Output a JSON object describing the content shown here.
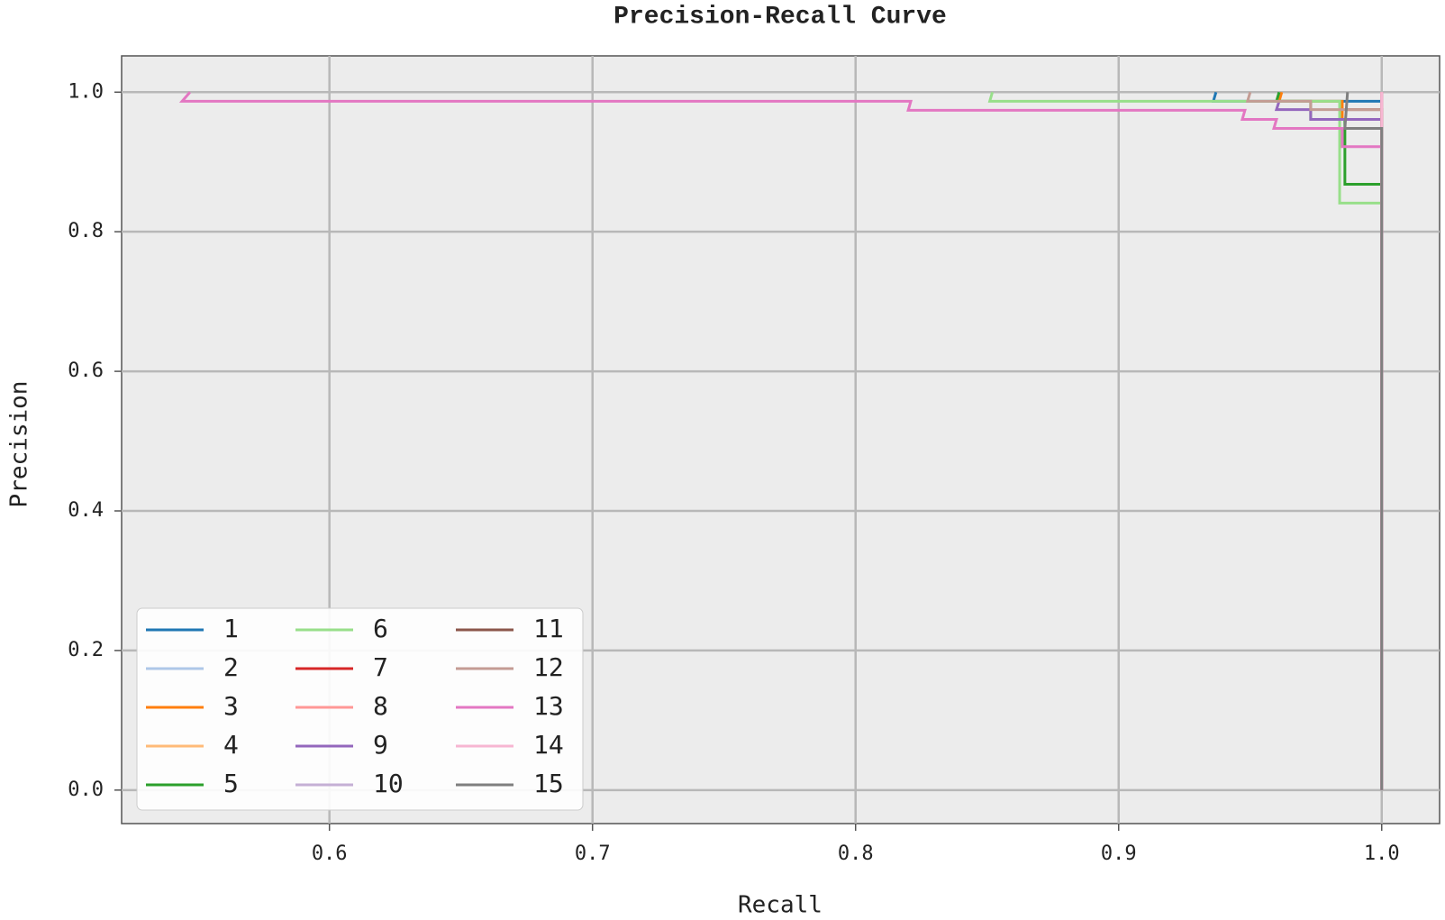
{
  "chart_data": {
    "type": "line",
    "title": "Precision-Recall Curve",
    "x_label": "Recall",
    "y_label": "Precision",
    "xlim": [
      0.521,
      1.022
    ],
    "ylim": [
      -0.048,
      1.052
    ],
    "xticks": [
      0.6,
      0.7,
      0.8,
      0.9,
      {
        "value": 1,
        "label": "1.0"
      }
    ],
    "yticks": [
      {
        "value": 0,
        "label": "0.0"
      },
      0.2,
      0.4,
      0.6,
      0.8,
      {
        "value": 1,
        "label": "1.0"
      }
    ],
    "grid": true,
    "legend": "lower left",
    "series": [
      {
        "name": "1",
        "color": "#1f77b4",
        "x": [
          0.937,
          0.936,
          1.0,
          1.0
        ],
        "values": [
          1.0,
          0.987,
          0.987,
          0.0
        ]
      },
      {
        "name": "2",
        "color": "#aec7e8",
        "x": [
          1.0,
          1.0
        ],
        "values": [
          1.0,
          0.0
        ]
      },
      {
        "name": "3",
        "color": "#ff7f0e",
        "x": [
          0.962,
          0.961,
          0.985,
          0.985,
          1.0,
          1.0
        ],
        "values": [
          1.0,
          0.987,
          0.987,
          0.961,
          0.961,
          0.0
        ]
      },
      {
        "name": "4",
        "color": "#ffbb78",
        "x": [
          1.0,
          1.0
        ],
        "values": [
          1.0,
          0.0
        ]
      },
      {
        "name": "5",
        "color": "#2ca02c",
        "x": [
          0.961,
          0.96,
          0.973,
          0.973,
          0.986,
          0.986,
          1.0,
          1.0
        ],
        "values": [
          1.0,
          0.987,
          0.987,
          0.961,
          0.961,
          0.868,
          0.868,
          0.0
        ]
      },
      {
        "name": "6",
        "color": "#98df8a",
        "x": [
          0.852,
          0.851,
          0.984,
          0.984,
          1.0,
          1.0
        ],
        "values": [
          1.0,
          0.987,
          0.987,
          0.841,
          0.841,
          0.0
        ]
      },
      {
        "name": "7",
        "color": "#d62728",
        "x": [
          1.0,
          1.0
        ],
        "values": [
          1.0,
          0.0
        ]
      },
      {
        "name": "8",
        "color": "#ff9896",
        "x": [
          1.0,
          1.0
        ],
        "values": [
          1.0,
          0.0
        ]
      },
      {
        "name": "9",
        "color": "#9467bd",
        "x": [
          0.961,
          0.96,
          0.973,
          0.973,
          1.0,
          1.0
        ],
        "values": [
          0.987,
          0.975,
          0.975,
          0.961,
          0.961,
          0.0
        ]
      },
      {
        "name": "10",
        "color": "#c5b0d5",
        "x": [
          1.0,
          1.0
        ],
        "values": [
          1.0,
          0.0
        ]
      },
      {
        "name": "11",
        "color": "#8c564b",
        "x": [
          0.987,
          1.0,
          1.0
        ],
        "values": [
          0.975,
          0.975,
          0.0
        ]
      },
      {
        "name": "12",
        "color": "#c49c94",
        "x": [
          0.95,
          0.949,
          0.973,
          0.973,
          1.0,
          1.0
        ],
        "values": [
          1.0,
          0.987,
          0.987,
          0.975,
          0.975,
          0.0
        ]
      },
      {
        "name": "13",
        "color": "#e377c2",
        "x": [
          0.547,
          0.544,
          0.821,
          0.82,
          0.948,
          0.947,
          0.96,
          0.959,
          0.985,
          0.985,
          1.0,
          1.0
        ],
        "values": [
          1.0,
          0.987,
          0.987,
          0.974,
          0.974,
          0.961,
          0.961,
          0.948,
          0.948,
          0.922,
          0.922,
          0.0
        ]
      },
      {
        "name": "14",
        "color": "#f7b6d2",
        "x": [
          1.0,
          1.0
        ],
        "values": [
          1.0,
          0.0
        ]
      },
      {
        "name": "15",
        "color": "#7f7f7f",
        "x": [
          0.987,
          0.986,
          1.0,
          1.0
        ],
        "values": [
          1.0,
          0.948,
          0.948,
          0.0
        ]
      }
    ]
  }
}
